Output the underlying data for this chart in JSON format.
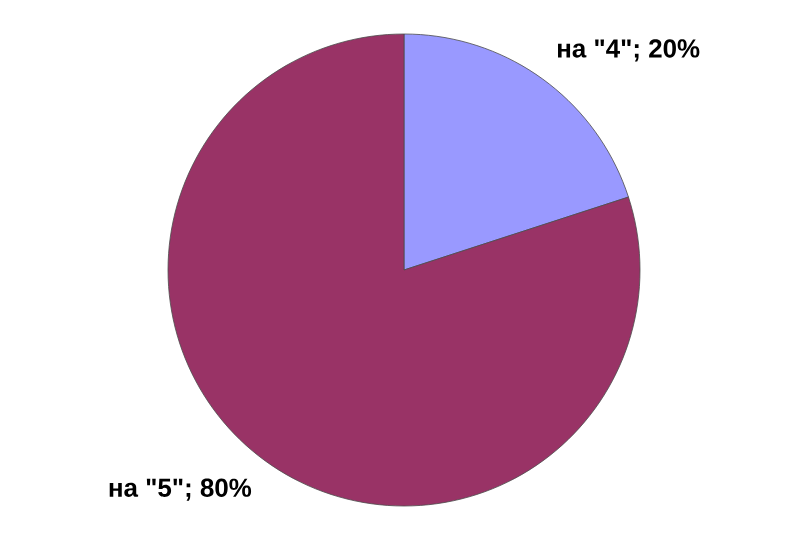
{
  "chart_data": {
    "type": "pie",
    "categories": [
      "на \"4\"; 20%",
      "на \"5\"; 80%"
    ],
    "values": [
      20,
      80
    ],
    "colors": [
      "#9999ff",
      "#993366"
    ]
  }
}
